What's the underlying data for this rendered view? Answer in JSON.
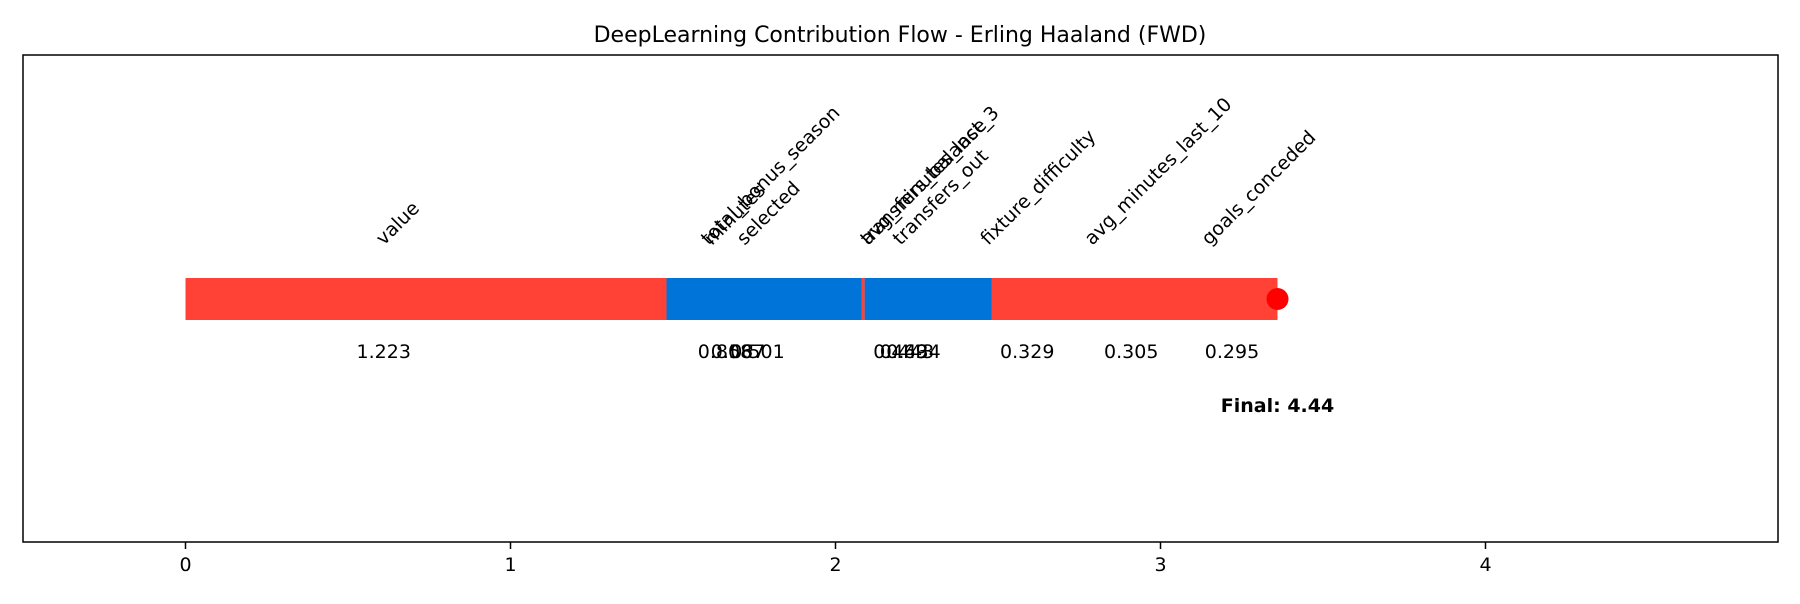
{
  "chart_data": {
    "type": "bar",
    "title": "DeepLearning Contribution Flow - Erling Haaland (FWD)",
    "xlabel": "",
    "ylabel": "",
    "xlim": [
      -0.5,
      4.9
    ],
    "xticks": [
      0,
      1,
      2,
      3,
      4
    ],
    "grid": false,
    "legend": "none",
    "colors": {
      "negative": "#ff4136",
      "positive": "#0074d9",
      "marker": "#ff0000"
    },
    "steps": [
      {
        "feature": "value",
        "start": 0.0,
        "end": 1.48,
        "label": "1.223",
        "color": "negative"
      },
      {
        "feature": "minutes",
        "start": 1.48,
        "end": 2.08,
        "label": "0.808",
        "color": "positive"
      },
      {
        "feature": "total_bonus_season",
        "start": 1.48,
        "end": 2.08,
        "label": "0.567",
        "color": "positive"
      },
      {
        "feature": "selected",
        "start": 1.48,
        "end": 2.08,
        "label": "0.501",
        "color": "positive"
      },
      {
        "feature": "avg_minutes_last_3",
        "start": 2.08,
        "end": 2.09,
        "label": "0.469",
        "color": "negative"
      },
      {
        "feature": "transfers_balance",
        "start": 2.09,
        "end": 2.48,
        "label": "0.443",
        "color": "positive"
      },
      {
        "feature": "transfers_out",
        "start": 2.09,
        "end": 2.48,
        "label": "0.434",
        "color": "positive"
      },
      {
        "feature": "fixture_difficulty",
        "start": 2.48,
        "end": 2.8,
        "label": "0.329",
        "color": "negative"
      },
      {
        "feature": "avg_minutes_last_10",
        "start": 2.8,
        "end": 3.1,
        "label": "0.305",
        "color": "negative"
      },
      {
        "feature": "goals_conceded",
        "start": 3.1,
        "end": 3.36,
        "label": "0.295",
        "color": "negative"
      }
    ],
    "label_positions": [
      0.61,
      1.62,
      1.61,
      1.72,
      2.1,
      2.1,
      2.2,
      2.47,
      2.79,
      3.15
    ],
    "value_positions": [
      0.61,
      1.66,
      1.7,
      1.76,
      2.2,
      2.22,
      2.24,
      2.59,
      2.91,
      3.22
    ],
    "final": {
      "x": 3.36,
      "label": "Final: 4.44"
    }
  }
}
